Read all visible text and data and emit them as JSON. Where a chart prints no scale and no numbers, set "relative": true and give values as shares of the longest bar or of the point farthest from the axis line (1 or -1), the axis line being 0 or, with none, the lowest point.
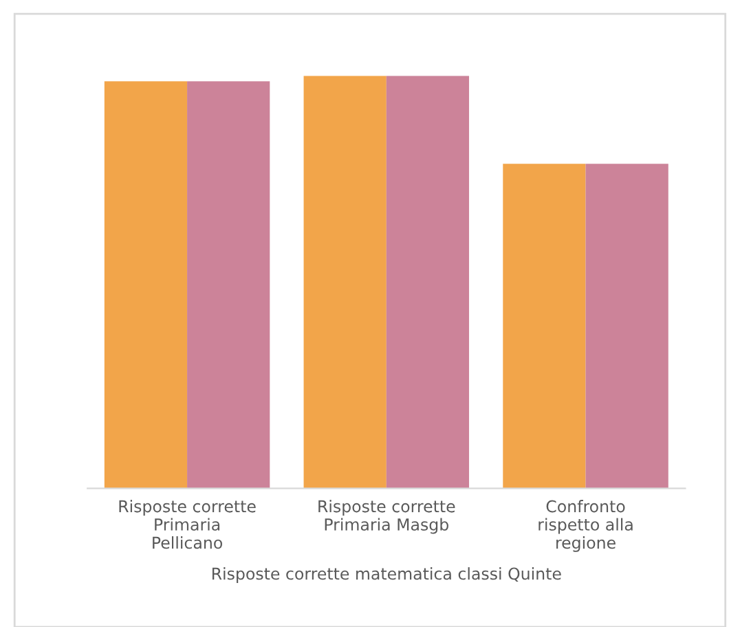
{
  "chart_data": {
    "type": "bar",
    "relative": true,
    "xlabel": "Risposte corrette matematica classi Quinte",
    "categories": [
      "Risposte corrette Primaria Pellicano",
      "Risposte corrette Primaria Masgb",
      "Confronto rispetto alla regione"
    ],
    "series": [
      {
        "color": "#f2a54a",
        "values": [
          0.987,
          1,
          0.787
        ]
      },
      {
        "color": "#cc8399",
        "values": [
          0.987,
          1,
          0.787
        ]
      }
    ],
    "grid": false
  }
}
